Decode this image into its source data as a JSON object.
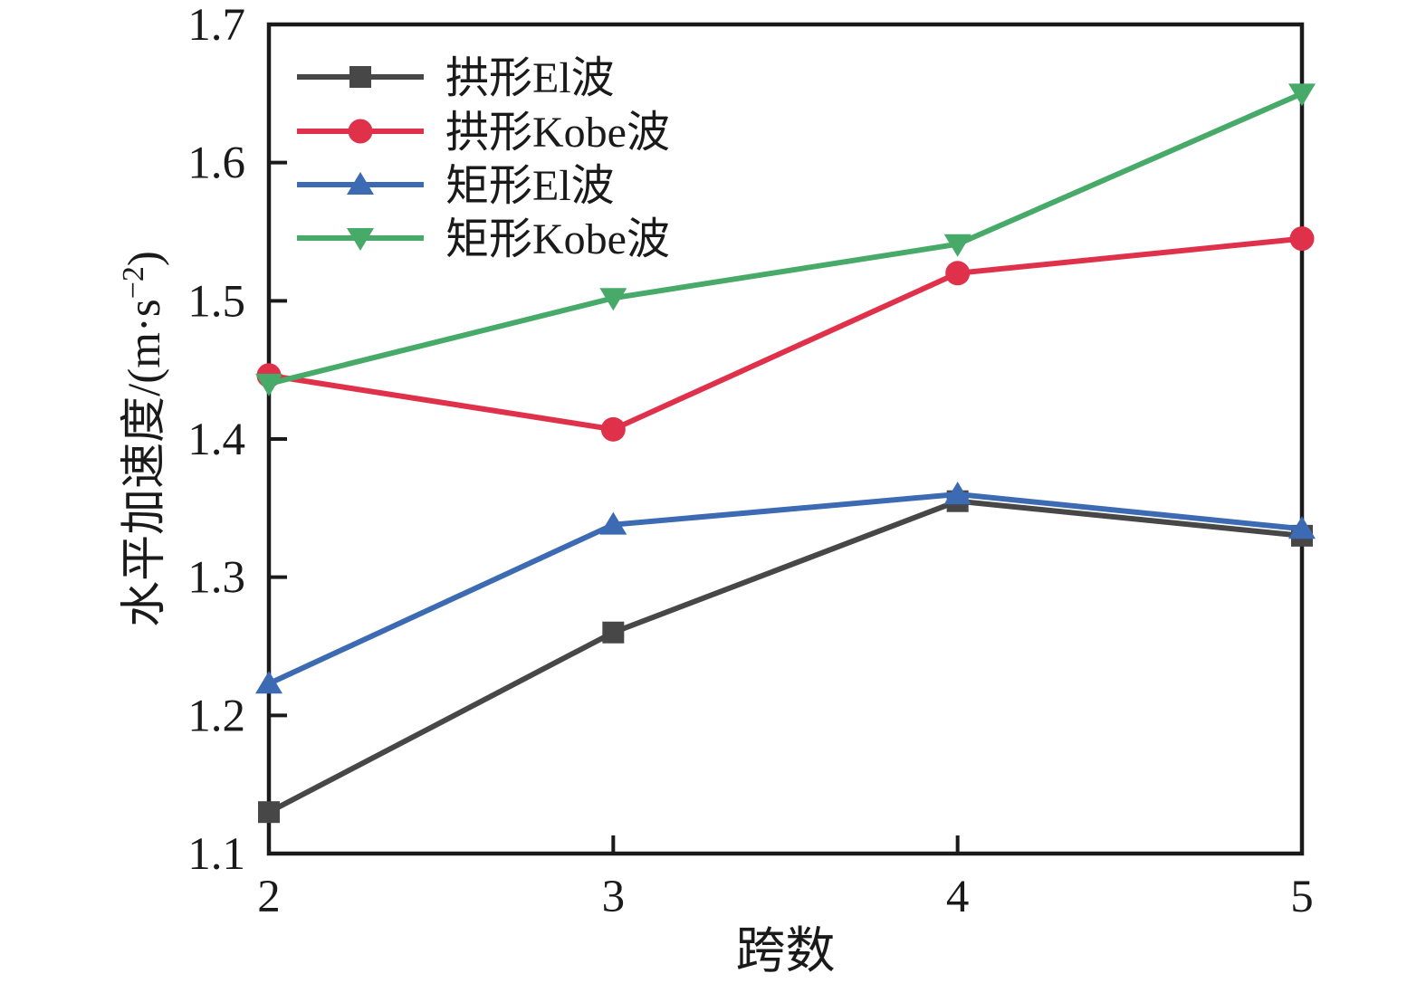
{
  "chart_data": {
    "type": "line",
    "title": "",
    "xlabel": "跨数",
    "ylabel": {
      "main": "水平加速度/(m·s",
      "sup": "−2",
      "end": ")"
    },
    "x": [
      2,
      3,
      4,
      5
    ],
    "xlim": [
      2,
      5
    ],
    "ylim": [
      1.1,
      1.7
    ],
    "xticks": [
      "2",
      "3",
      "4",
      "5"
    ],
    "yticks": [
      "1.1",
      "1.2",
      "1.3",
      "1.4",
      "1.5",
      "1.6",
      "1.7"
    ],
    "grid": false,
    "legend_position": "upper-left-inside",
    "axis_color": "#1a1a1a",
    "series": [
      {
        "name": "拱形El波",
        "color": "#474747",
        "marker": "square",
        "values": [
          1.13,
          1.26,
          1.355,
          1.33
        ]
      },
      {
        "name": "拱形Kobe波",
        "color": "#e0314b",
        "marker": "circle",
        "values": [
          1.446,
          1.407,
          1.52,
          1.545
        ]
      },
      {
        "name": "矩形El波",
        "color": "#3d6bb3",
        "marker": "triangle-up",
        "values": [
          1.223,
          1.338,
          1.36,
          1.335
        ]
      },
      {
        "name": "矩形Kobe波",
        "color": "#47aa69",
        "marker": "triangle-down",
        "values": [
          1.44,
          1.502,
          1.541,
          1.65
        ]
      }
    ]
  }
}
